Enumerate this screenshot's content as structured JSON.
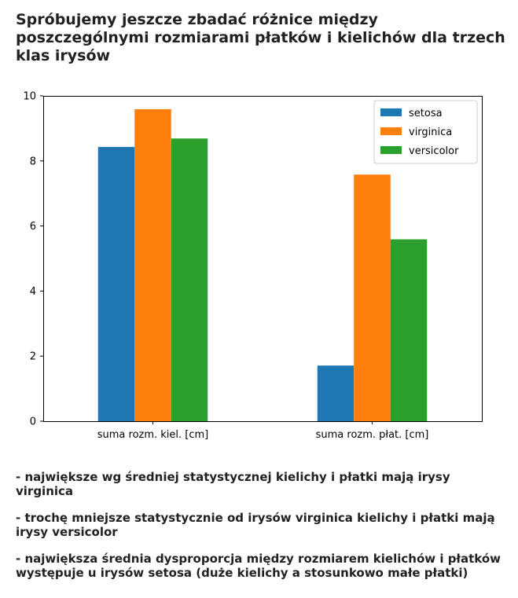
{
  "heading": "Spróbujemy jeszcze zbadać różnice między poszczególnymi rozmiarami płatków i kielichów dla trzech klas irysów",
  "chart_data": {
    "type": "bar",
    "categories": [
      "suma rozm. kiel. [cm]",
      "suma rozm. płat. [cm]"
    ],
    "series": [
      {
        "name": "setosa",
        "color": "#1f77b4",
        "values": [
          8.43,
          1.71
        ]
      },
      {
        "name": "virginica",
        "color": "#ff7f0e",
        "values": [
          9.59,
          7.58
        ]
      },
      {
        "name": "versicolor",
        "color": "#2ca02c",
        "values": [
          8.69,
          5.59
        ]
      }
    ],
    "ylim": [
      0,
      10
    ],
    "yticks": [
      0,
      2,
      4,
      6,
      8,
      10
    ],
    "grid": false,
    "legend": "top-right"
  },
  "notes": [
    "- największe wg średniej statystycznej kielichy i płatki mają irysy virginica",
    "- trochę mniejsze statystycznie od irysów virginica kielichy i płatki mają irysy versicolor",
    "- największa średnia dysproporcja między rozmiarem kielichów i płatków występuje u irysów setosa (duże kielichy a stosunkowo małe płatki)"
  ]
}
